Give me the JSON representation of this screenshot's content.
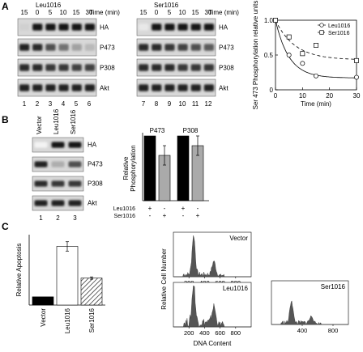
{
  "panels": {
    "A": {
      "letter": "A",
      "left_blot": {
        "condition_label": "Leu1016",
        "time_axis_label": "Time (min)",
        "time_points": [
          "15",
          "0",
          "5",
          "10",
          "15",
          "30"
        ],
        "lane_numbers": [
          "1",
          "2",
          "3",
          "4",
          "5",
          "6"
        ],
        "row_labels": [
          "HA",
          "P473",
          "P308",
          "Akt"
        ]
      },
      "right_blot": {
        "condition_label": "Ser1016",
        "time_axis_label": "Time (min)",
        "time_points": [
          "15",
          "0",
          "5",
          "10",
          "15",
          "30"
        ],
        "lane_numbers": [
          "7",
          "8",
          "9",
          "10",
          "11",
          "12"
        ],
        "row_labels": [
          "HA",
          "P473",
          "P308",
          "Akt"
        ]
      }
    },
    "B": {
      "letter": "B",
      "blot": {
        "column_labels": [
          "Vector",
          "Leu1016",
          "Ser1016"
        ],
        "row_labels": [
          "HA",
          "P473",
          "P308",
          "Akt"
        ],
        "lane_numbers": [
          "1",
          "2",
          "3"
        ]
      },
      "conditions": {
        "row1_label": "Leu1016",
        "row2_label": "Ser1016",
        "row1_signs": [
          "+",
          "-",
          "+",
          "-"
        ],
        "row2_signs": [
          "-",
          "+",
          "-",
          "+"
        ]
      }
    },
    "C": {
      "letter": "C",
      "flow": {
        "x_label": "DNA Content",
        "y_label": "Relative Cell Number",
        "histograms": [
          {
            "label": "Vector",
            "ticks": [
              "200",
              "400",
              "600",
              "800"
            ]
          },
          {
            "label": "Leu1016",
            "ticks": [
              "200",
              "400",
              "600",
              "800"
            ]
          },
          {
            "label": "Ser1016",
            "ticks": [
              "400",
              "800"
            ]
          }
        ]
      }
    }
  },
  "chart_data": [
    {
      "type": "line",
      "panel": "A",
      "xlabel": "Time (min)",
      "ylabel": "Ser 473 Phosphorylation relative units",
      "xlim": [
        0,
        30
      ],
      "ylim": [
        0,
        1.0
      ],
      "xticks": [
        "0",
        "10",
        "20",
        "30"
      ],
      "yticks": [
        "0",
        "0.5",
        "1.0"
      ],
      "legend": "top-right",
      "series": [
        {
          "name": "Leu1016",
          "marker": "circle",
          "curve": "solid",
          "x": [
            0,
            5,
            10,
            15,
            30
          ],
          "y": [
            1.0,
            0.5,
            0.38,
            0.2,
            0.18
          ]
        },
        {
          "name": "Ser1016",
          "marker": "square",
          "curve": "dashed",
          "x": [
            0,
            5,
            10,
            15,
            30
          ],
          "y": [
            1.0,
            0.76,
            0.52,
            0.64,
            0.42
          ]
        }
      ]
    },
    {
      "type": "bar",
      "panel": "B",
      "ylabel": "Relative Phosphorylation",
      "group_labels": [
        "P473",
        "P308"
      ],
      "ylim": [
        0,
        1.0
      ],
      "values": [
        1.0,
        0.7,
        1.0,
        0.85
      ],
      "errors": [
        0.0,
        0.15,
        0.0,
        0.15
      ],
      "fill": [
        "#000000",
        "#aaaaaa",
        "#000000",
        "#aaaaaa"
      ]
    },
    {
      "type": "bar",
      "panel": "C",
      "ylabel": "Relative Apoptosis",
      "categories": [
        "Vector",
        "Leu1016",
        "Ser1016"
      ],
      "values": [
        3.5,
        25,
        11.5
      ],
      "errors": [
        0,
        2,
        0.5
      ],
      "ylim": [
        0,
        30
      ],
      "fill": [
        "#000000",
        "#ffffff",
        "hatched"
      ]
    }
  ]
}
